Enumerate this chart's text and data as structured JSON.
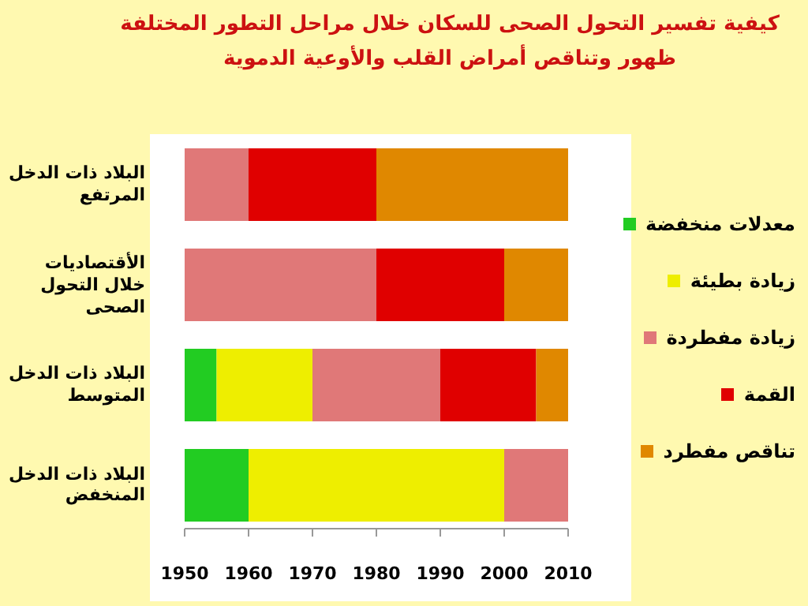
{
  "chart_data": {
    "type": "bar",
    "orientation": "horizontal",
    "title": "كيفية تفسير التحول الصحى للسكان خلال مراحل التطور المختلفة",
    "subtitle": "ظهور وتناقص أمراض القلب والأوعية الدموية",
    "categories": [
      "البلاد ذات الدخل المرتفع",
      "الأقتصاديات خلال التحول الصحى",
      "البلاد ذات الدخل المتوسط",
      "البلاد ذات الدخل المنخفض"
    ],
    "series": [
      {
        "name": "معدلات منخفضة",
        "color": "#22cc22",
        "base": [
          null,
          null,
          1950,
          1950
        ],
        "values": [
          null,
          null,
          5,
          10
        ]
      },
      {
        "name": "زيادة بطيئة",
        "color": "#eeee00",
        "base": [
          null,
          null,
          1955,
          1960
        ],
        "values": [
          null,
          null,
          15,
          40
        ]
      },
      {
        "name": "زيادة مفطردة",
        "color": "#e07878",
        "base": [
          1950,
          1950,
          1970,
          2000
        ],
        "values": [
          10,
          30,
          20,
          10
        ]
      },
      {
        "name": "القمة",
        "color": "#e00000",
        "base": [
          1960,
          1980,
          1990,
          null
        ],
        "values": [
          20,
          20,
          15,
          null
        ]
      },
      {
        "name": "تناقص مفطرد",
        "color": "#e08800",
        "base": [
          1980,
          2000,
          2005,
          null
        ],
        "values": [
          30,
          10,
          5,
          null
        ]
      }
    ],
    "xlim": [
      1950,
      2010
    ],
    "xticks": [
      1950,
      1960,
      1970,
      1980,
      1990,
      2000,
      2010
    ],
    "legend": "right",
    "grid": false
  }
}
